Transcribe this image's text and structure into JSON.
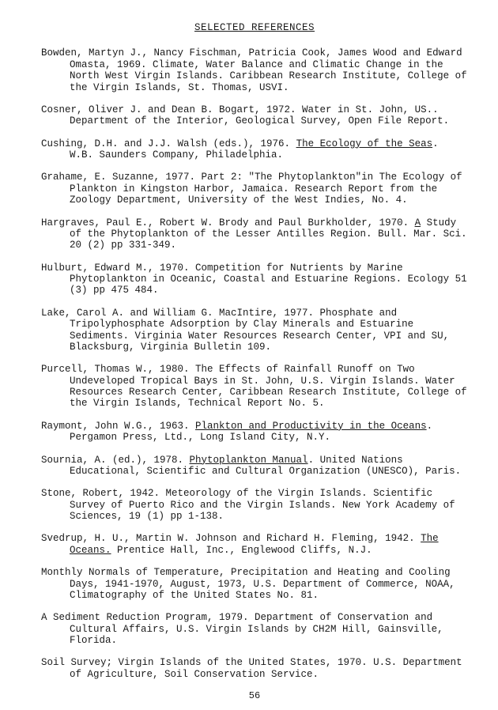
{
  "title": "SELECTED REFERENCES",
  "page_number": "56",
  "references": [
    {
      "pre": "Bowden, Martyn J., Nancy Fischman, Patricia Cook, James Wood and Edward Omasta, 1969.  Climate, Water Balance and Climatic Change in the North West Virgin Islands.  Caribbean Research Institute, College of the Virgin Islands, St. Thomas, USVI.",
      "u": "",
      "post": ""
    },
    {
      "pre": "Cosner, Oliver J. and Dean B. Bogart, 1972.  Water in St. John, US.. Department of the Interior, Geological Survey, Open File Report.",
      "u": "",
      "post": ""
    },
    {
      "pre": "Cushing, D.H. and J.J. Walsh (eds.), 1976.  ",
      "u": "The Ecology of the Seas",
      "post": ".  W.B. Saunders Company, Philadelphia."
    },
    {
      "pre": "Grahame, E. Suzanne, 1977.  Part 2: \"The Phytoplankton\"in The Ecology of Plankton in Kingston Harbor, Jamaica.  Research Report from the Zoology Department, University of the West Indies, No. 4.",
      "u": "",
      "post": ""
    },
    {
      "pre": "Hargraves, Paul E., Robert W. Brody and Paul Burkholder, 1970.  ",
      "u": "A",
      "post": " Study of the Phytoplankton of the Lesser Antilles Region.  Bull. Mar. Sci. 20 (2) pp 331-349."
    },
    {
      "pre": "Hulburt, Edward M., 1970.  Competition for Nutrients by Marine Phytoplankton in Oceanic, Coastal and Estuarine Regions.  Ecology 51 (3) pp 475 484.",
      "u": "",
      "post": ""
    },
    {
      "pre": "Lake, Carol A. and William G. MacIntire, 1977.  Phosphate and Tripolyphosphate Adsorption by Clay Minerals and Estuarine Sediments.  Virginia Water Resources Research Center, VPI and SU, Blacksburg, Virginia Bulletin 109.",
      "u": "",
      "post": ""
    },
    {
      "pre": "Purcell, Thomas W., 1980.  The Effects of Rainfall Runoff on Two Undeveloped Tropical Bays in St. John, U.S. Virgin Islands.  Water Resources Research Center, Caribbean Research Institute, College of the Virgin Islands, Technical Report No. 5.",
      "u": "",
      "post": ""
    },
    {
      "pre": "Raymont, John W.G., 1963.  ",
      "u": "Plankton and Productivity in the Oceans",
      "post": ".  Pergamon Press, Ltd., Long Island City, N.Y."
    },
    {
      "pre": "Sournia, A. (ed.), 1978.  ",
      "u": "Phytoplankton Manual",
      "post": ".  United Nations Educational, Scientific and Cultural Organization (UNESCO), Paris."
    },
    {
      "pre": "Stone, Robert, 1942.  Meteorology of the Virgin Islands.  Scientific Survey of Puerto Rico and the Virgin Islands.  New York Academy of Sciences, 19 (1) pp 1-138.",
      "u": "",
      "post": ""
    },
    {
      "pre": "Svedrup, H. U., Martin W. Johnson and Richard H. Fleming, 1942.  ",
      "u": "The Oceans.",
      "post": "  Prentice Hall, Inc., Englewood Cliffs, N.J."
    },
    {
      "pre": "Monthly Normals of Temperature, Precipitation and Heating and Cooling Days, 1941-1970, August, 1973, U.S. Department of Commerce, NOAA, Climatography of the United States No. 81.",
      "u": "",
      "post": ""
    },
    {
      "pre": "A Sediment Reduction Program, 1979.  Department of Conservation and Cultural Affairs, U.S. Virgin Islands by CH2M Hill, Gainsville, Florida.",
      "u": "",
      "post": ""
    },
    {
      "pre": "Soil Survey; Virgin Islands of the United States, 1970.  U.S. Department of Agriculture, Soil Conservation Service.",
      "u": "",
      "post": ""
    }
  ]
}
